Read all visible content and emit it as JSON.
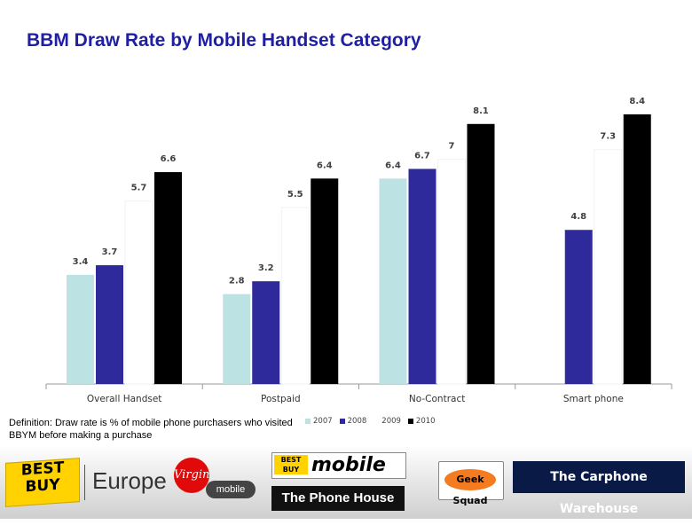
{
  "title": "BBM Draw Rate by Mobile Handset Category",
  "definition": "Definition: Draw rate is % of mobile phone purchasers who visited BBYM before making a purchase",
  "colors": {
    "2007": "#bde2e4",
    "2008": "#2e2a9c",
    "2009": "#ffffff",
    "2010": "#000000",
    "title": "#1f1fa3"
  },
  "chart_data": {
    "type": "bar",
    "title": "BBM Draw Rate by Mobile Handset Category",
    "categories": [
      "Overall Handset",
      "Postpaid",
      "No-Contract",
      "Smart phone"
    ],
    "series": [
      {
        "name": "2007",
        "values": [
          3.4,
          2.8,
          6.4,
          null
        ]
      },
      {
        "name": "2008",
        "values": [
          3.7,
          3.2,
          6.7,
          4.8
        ]
      },
      {
        "name": "2009",
        "values": [
          5.7,
          5.5,
          7,
          7.3
        ]
      },
      {
        "name": "2010",
        "values": [
          6.6,
          6.4,
          8.1,
          8.4
        ]
      }
    ],
    "data_labels": [
      [
        "3.4",
        "2.8",
        "6.4",
        ""
      ],
      [
        "3.7",
        "3.2",
        "6.7",
        "4.8"
      ],
      [
        "5.7",
        "5.5",
        "7",
        "7.3"
      ],
      [
        "6.6",
        "6.4",
        "8.1",
        "8.4"
      ]
    ],
    "ylim": [
      0,
      10
    ],
    "grid": false,
    "legend_position": "bottom"
  },
  "logos": {
    "bestbuy": [
      "BEST",
      "BUY"
    ],
    "europe": "Europe",
    "virgin": "Virgin",
    "virgin_mobile": "mobile",
    "bbm_tag": [
      "BEST",
      "BUY"
    ],
    "bbm_text": "mobile",
    "phonehouse": "The Phone House",
    "geeksquad": "Geek Squad",
    "carphone": "The Carphone Warehouse"
  }
}
